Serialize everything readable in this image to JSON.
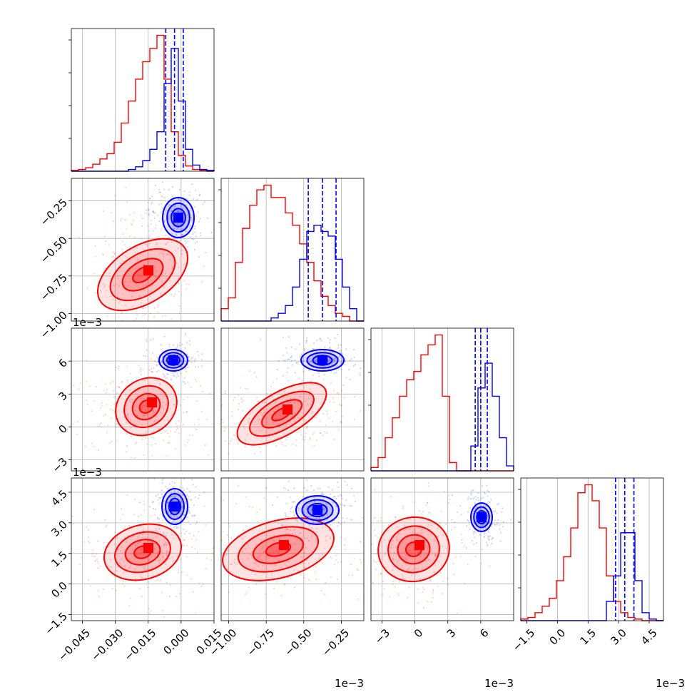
{
  "chart_data": {
    "type": "corner",
    "series": [
      {
        "name": "",
        "color": "#ff0000"
      },
      {
        "name": "",
        "color": "#0000ff"
      }
    ],
    "parameters": [
      {
        "range": [
          -0.05,
          0.015
        ],
        "tick_values": [
          -0.045,
          -0.03,
          -0.015,
          0.0,
          0.015
        ],
        "tick_labels": [
          "−0.045",
          "−0.030",
          "−0.015",
          "0.000",
          "0.015"
        ],
        "multiplier": ""
      },
      {
        "range": [
          -1.05,
          -0.1
        ],
        "tick_values": [
          -1.0,
          -0.75,
          -0.5,
          -0.25
        ],
        "tick_labels": [
          "−1.00",
          "−0.75",
          "−0.50",
          "−0.25"
        ],
        "multiplier": "1e−3"
      },
      {
        "range": [
          -4.0,
          9.0
        ],
        "tick_values": [
          -3,
          0,
          3,
          6
        ],
        "tick_labels": [
          "−3",
          "0",
          "3",
          "6"
        ],
        "multiplier": "1e−3"
      },
      {
        "range": [
          -1.8,
          5.2
        ],
        "tick_values": [
          -1.5,
          0.0,
          1.5,
          3.0,
          4.5
        ],
        "tick_labels": [
          "−1.5",
          "0.0",
          "1.5",
          "3.0",
          "4.5"
        ],
        "multiplier": "1e−3"
      }
    ],
    "histograms": [
      {
        "bins": [
          -0.05,
          0.015,
          20
        ],
        "red": [
          1,
          2,
          4,
          8,
          14,
          20,
          33,
          55,
          80,
          105,
          125,
          140,
          155,
          105,
          45,
          18,
          6,
          2,
          1,
          0
        ],
        "blue": [
          0,
          0,
          0,
          0,
          0,
          0,
          0,
          0,
          2,
          5,
          12,
          25,
          45,
          100,
          140,
          80,
          25,
          7,
          2,
          1
        ],
        "quantiles": [
          -0.007,
          -0.003,
          0.001
        ]
      },
      {
        "bins": [
          -1.05,
          -0.1,
          20
        ],
        "red": [
          8,
          15,
          38,
          60,
          75,
          85,
          88,
          80,
          80,
          70,
          62,
          50,
          38,
          26,
          16,
          10,
          5,
          3,
          0,
          0
        ],
        "blue": [
          0,
          0,
          0,
          0,
          0,
          0,
          0,
          2,
          5,
          10,
          22,
          40,
          58,
          62,
          58,
          55,
          40,
          22,
          8,
          0
        ],
        "quantiles": [
          -0.47,
          -0.375,
          -0.285
        ]
      },
      {
        "bins": [
          -4.0,
          9.0,
          20
        ],
        "red": [
          2,
          8,
          20,
          32,
          45,
          55,
          60,
          70,
          76,
          82,
          45,
          5,
          0,
          0,
          0,
          0,
          0,
          0,
          0,
          0
        ],
        "blue": [
          0,
          0,
          0,
          0,
          0,
          0,
          0,
          0,
          0,
          0,
          0,
          0,
          0,
          0,
          15,
          50,
          65,
          45,
          20,
          3
        ],
        "quantiles": [
          5.5,
          6.0,
          6.6
        ]
      },
      {
        "bins": [
          -1.8,
          5.2,
          20
        ],
        "red": [
          1,
          2,
          5,
          9,
          14,
          25,
          40,
          58,
          80,
          85,
          75,
          58,
          28,
          12,
          5,
          2,
          1,
          0,
          0,
          0
        ],
        "blue": [
          0,
          0,
          0,
          0,
          0,
          0,
          0,
          0,
          0,
          0,
          0,
          0,
          12,
          28,
          55,
          55,
          25,
          5,
          1,
          0
        ],
        "quantiles": [
          2.85,
          3.3,
          3.75
        ]
      }
    ]
  }
}
